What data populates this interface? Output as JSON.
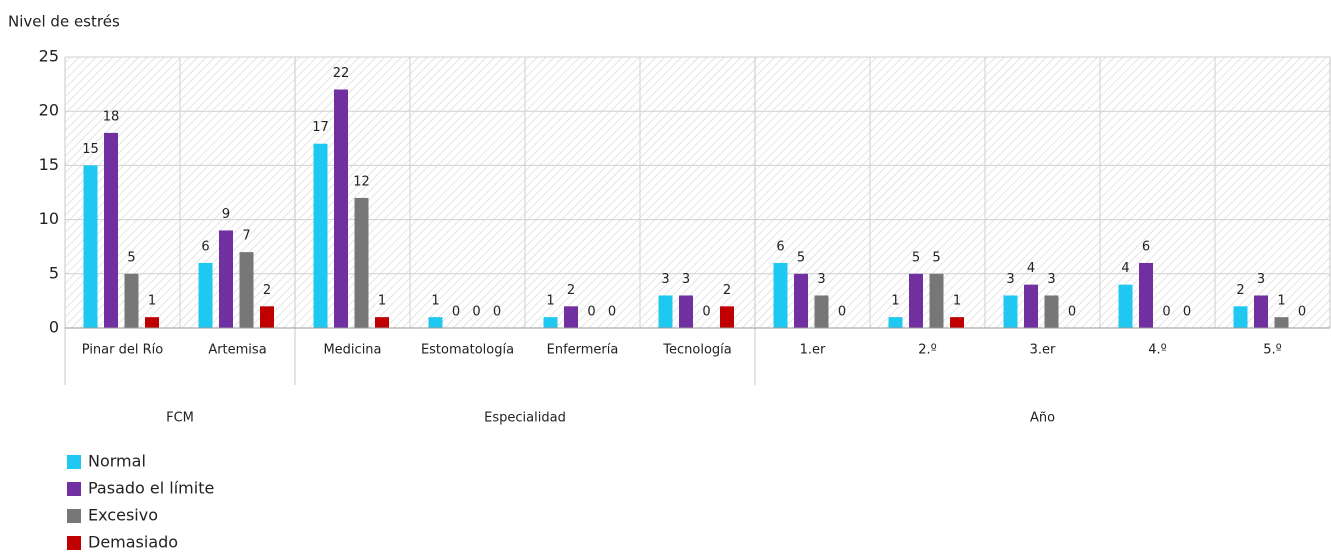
{
  "chart_data": {
    "type": "bar",
    "ylabel": "Nivel de estrés",
    "groups": [
      {
        "name": "FCM",
        "categories": [
          "Pinar del Río",
          "Artemisa"
        ]
      },
      {
        "name": "Especialidad",
        "categories": [
          "Medicina",
          "Estomatología",
          "Enfermería",
          "Tecnología"
        ]
      },
      {
        "name": "Año",
        "categories": [
          "1.er",
          "2.º",
          "3.er",
          "4.º",
          "5.º"
        ]
      }
    ],
    "series": [
      {
        "name": "Normal",
        "color": "#1ec8f0",
        "values": [
          15,
          6,
          17,
          1,
          1,
          3,
          6,
          1,
          3,
          4,
          2
        ]
      },
      {
        "name": "Pasado el límite",
        "color": "#7030a0",
        "values": [
          18,
          9,
          22,
          0,
          2,
          3,
          5,
          5,
          4,
          6,
          3
        ]
      },
      {
        "name": "Excesivo",
        "color": "#777777",
        "values": [
          5,
          7,
          12,
          0,
          0,
          0,
          3,
          5,
          3,
          0,
          1
        ]
      },
      {
        "name": "Demasiado",
        "color": "#c00000",
        "values": [
          1,
          2,
          1,
          0,
          0,
          2,
          0,
          1,
          0,
          0,
          0
        ]
      }
    ],
    "ylim": [
      0,
      25
    ],
    "yticks": [
      0,
      5,
      10,
      15,
      20,
      25
    ],
    "grid": true,
    "legend": "bottom-left"
  }
}
